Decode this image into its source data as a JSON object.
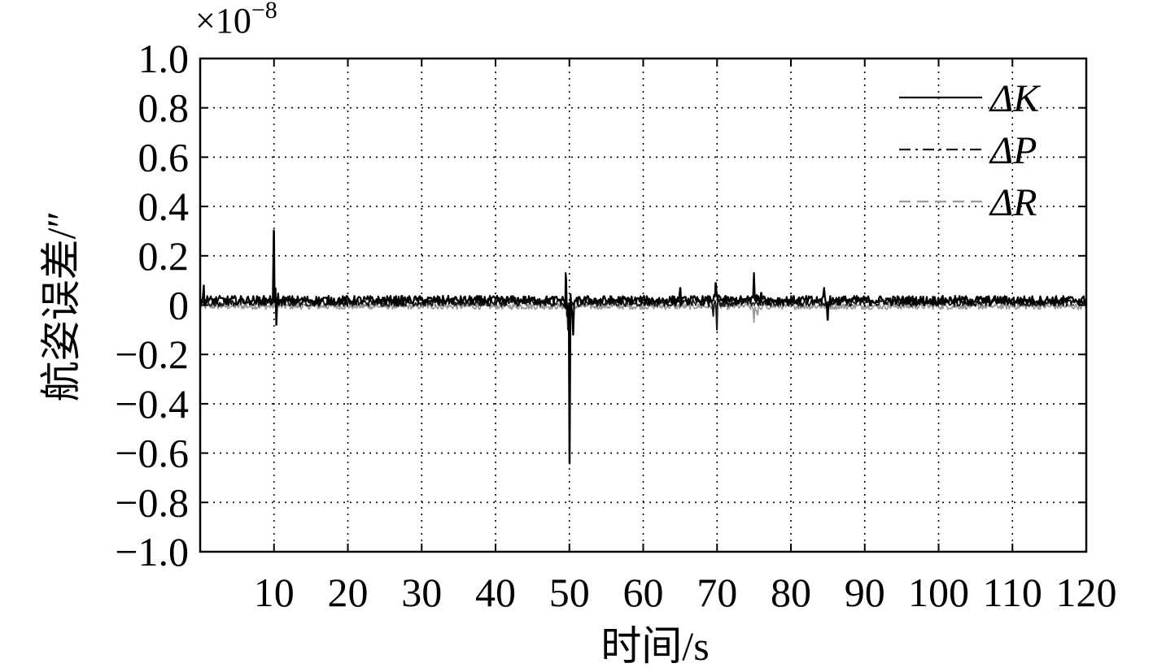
{
  "chart_data": {
    "type": "line",
    "scale_label_base": "×10",
    "scale_label_exp": "−8",
    "xlabel": "时间/s",
    "ylabel": "航姿误差/″",
    "xlim": [
      0,
      120
    ],
    "ylim": [
      -1.0,
      1.0
    ],
    "grid": true,
    "legend_position": "top-right",
    "xticks": [
      10,
      20,
      30,
      40,
      50,
      60,
      70,
      80,
      90,
      100,
      110,
      120
    ],
    "xtick_labels": [
      "10",
      "20",
      "30",
      "40",
      "50",
      "60",
      "70",
      "80",
      "90",
      "100",
      "110",
      "120"
    ],
    "yticks": [
      1.0,
      0.8,
      0.6,
      0.4,
      0.2,
      0,
      -0.2,
      -0.4,
      -0.6,
      -0.8,
      -1.0
    ],
    "ytick_labels": [
      "1.0",
      "0.8",
      "0.6",
      "0.4",
      "0.2",
      "0",
      "−0.2",
      "−0.4",
      "−0.6",
      "−0.8",
      "−1.0"
    ],
    "series": [
      {
        "name": "ΔK",
        "legend_prefix": "Δ",
        "legend_letter": "K",
        "color": "#000000",
        "style": "solid",
        "baseline": 0.02,
        "noise": 0.018,
        "spikes": [
          {
            "x": 0.5,
            "y": 0.08
          },
          {
            "x": 10,
            "y": 0.3
          },
          {
            "x": 10.3,
            "y": -0.08
          },
          {
            "x": 49.5,
            "y": 0.13
          },
          {
            "x": 50,
            "y": -0.64
          },
          {
            "x": 50.5,
            "y": -0.12
          },
          {
            "x": 65,
            "y": 0.07
          },
          {
            "x": 69.8,
            "y": 0.09
          },
          {
            "x": 75,
            "y": 0.13
          },
          {
            "x": 76,
            "y": 0.05
          },
          {
            "x": 84.5,
            "y": 0.07
          },
          {
            "x": 85,
            "y": -0.06
          }
        ]
      },
      {
        "name": "ΔP",
        "legend_prefix": "Δ",
        "legend_letter": "P",
        "color": "#1a1a1a",
        "style": "dashdot",
        "baseline": 0.01,
        "noise": 0.015,
        "spikes": [
          {
            "x": 49.8,
            "y": -0.1
          },
          {
            "x": 69.5,
            "y": -0.04
          },
          {
            "x": 70,
            "y": -0.1
          }
        ]
      },
      {
        "name": "ΔR",
        "legend_prefix": "Δ",
        "legend_letter": "R",
        "color": "#9a9a9a",
        "style": "dashed",
        "baseline": -0.005,
        "noise": 0.012,
        "spikes": [
          {
            "x": 75,
            "y": -0.07
          },
          {
            "x": 75.5,
            "y": -0.04
          }
        ]
      }
    ]
  }
}
